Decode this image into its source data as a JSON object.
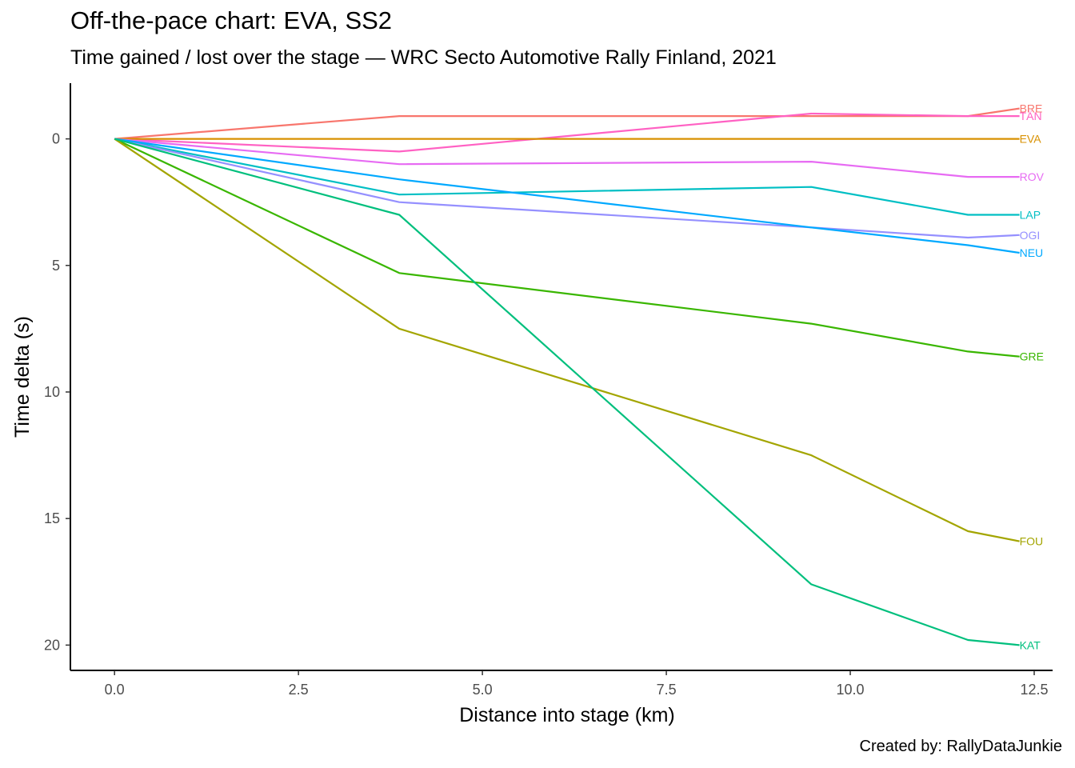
{
  "header": {
    "title": "Off-the-pace chart: EVA, SS2",
    "subtitle": "Time gained / lost over the stage — WRC Secto Automotive Rally Finland, 2021"
  },
  "caption": "Created by: RallyDataJunkie",
  "chart_data": {
    "type": "line",
    "xlabel": "Distance into stage (km)",
    "ylabel": "Time delta (s)",
    "xlim": [
      -0.6,
      12.75
    ],
    "ylim": [
      -2.2,
      21.0
    ],
    "y_reversed": true,
    "grid": false,
    "x_ticks": [
      0.0,
      2.5,
      5.0,
      7.5,
      10.0,
      12.5
    ],
    "x_tick_labels": [
      "0.0",
      "2.5",
      "5.0",
      "7.5",
      "10.0",
      "12.5"
    ],
    "y_ticks": [
      0,
      5,
      10,
      15,
      20
    ],
    "y_tick_labels": [
      "0",
      "5",
      "10",
      "15",
      "20"
    ],
    "x": [
      0.0,
      3.87,
      9.47,
      11.6,
      12.3
    ],
    "series": [
      {
        "name": "BRE",
        "color": "#F8766D",
        "values": [
          0,
          -0.9,
          -0.9,
          -0.9,
          -1.2
        ]
      },
      {
        "name": "TÄN",
        "color": "#FF61C3",
        "values": [
          0,
          0.5,
          -1.0,
          -0.9,
          -0.9
        ]
      },
      {
        "name": "EVA",
        "color": "#D89000",
        "values": [
          0,
          0,
          0,
          0,
          0
        ]
      },
      {
        "name": "ROV",
        "color": "#E76BF3",
        "values": [
          0,
          1.0,
          0.9,
          1.5,
          1.5
        ]
      },
      {
        "name": "LAP",
        "color": "#00BFC4",
        "values": [
          0,
          2.2,
          1.9,
          3.0,
          3.0
        ]
      },
      {
        "name": "OGI",
        "color": "#9590FF",
        "values": [
          0,
          2.5,
          3.5,
          3.9,
          3.8
        ]
      },
      {
        "name": "NEU",
        "color": "#00A9FF",
        "values": [
          0,
          1.6,
          3.5,
          4.2,
          4.5
        ]
      },
      {
        "name": "GRE",
        "color": "#39B600",
        "values": [
          0,
          5.3,
          7.3,
          8.4,
          8.6
        ]
      },
      {
        "name": "FOU",
        "color": "#A3A500",
        "values": [
          0,
          7.5,
          12.5,
          15.5,
          15.9
        ]
      },
      {
        "name": "KAT",
        "color": "#00BF7D",
        "values": [
          0,
          3.0,
          17.6,
          19.8,
          20.0
        ]
      }
    ]
  }
}
